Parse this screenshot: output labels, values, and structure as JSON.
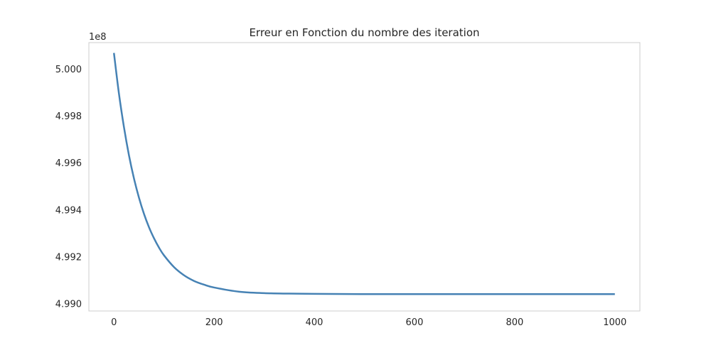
{
  "chart_data": {
    "type": "line",
    "title": "Erreur en Fonction du nombre des iteration",
    "xlabel": "",
    "ylabel": "",
    "y_offset_label": "1e8",
    "xlim": [
      -50,
      1050
    ],
    "ylim": [
      4.98968,
      5.00112
    ],
    "x_ticks": [
      0,
      200,
      400,
      600,
      800,
      1000
    ],
    "x_tick_labels": [
      "0",
      "200",
      "400",
      "600",
      "800",
      "1000"
    ],
    "y_ticks": [
      4.99,
      4.992,
      4.994,
      4.996,
      4.998,
      5.0
    ],
    "y_tick_labels": [
      "4.990",
      "4.992",
      "4.994",
      "4.996",
      "4.998",
      "5.000"
    ],
    "grid": false,
    "series": [
      {
        "color": "#4682b4",
        "x": [
          0,
          10,
          20,
          30,
          40,
          50,
          60,
          70,
          80,
          90,
          100,
          120,
          140,
          160,
          180,
          200,
          250,
          300,
          350,
          400,
          500,
          600,
          700,
          800,
          900,
          1000
        ],
        "y": [
          5.00068,
          4.99895,
          4.99752,
          4.99632,
          4.99533,
          4.99451,
          4.99382,
          4.99325,
          4.99278,
          4.99238,
          4.99205,
          4.99155,
          4.9912,
          4.99096,
          4.9908,
          4.99068,
          4.9905,
          4.99044,
          4.99042,
          4.99041,
          4.9904,
          4.9904,
          4.9904,
          4.9904,
          4.9904,
          4.9904
        ]
      }
    ]
  }
}
